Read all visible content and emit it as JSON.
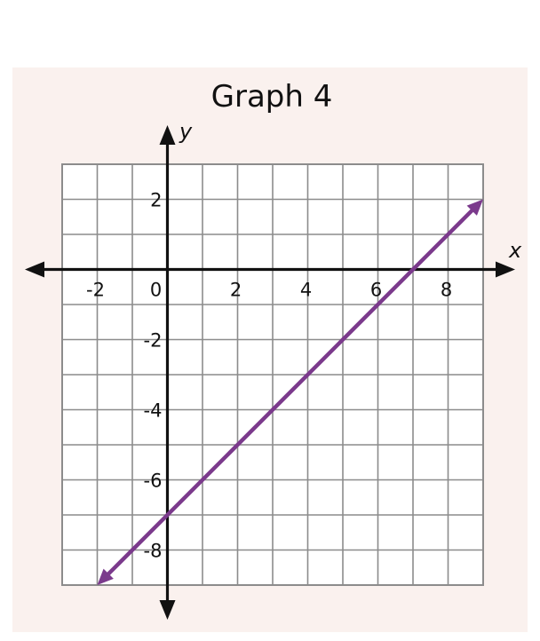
{
  "chart_data": {
    "type": "line",
    "title": "Graph 4",
    "xlabel": "x",
    "ylabel": "y",
    "xlim": [
      -3,
      9
    ],
    "ylim": [
      -9,
      3
    ],
    "grid": true,
    "x_ticks": [
      -2,
      0,
      2,
      4,
      6,
      8
    ],
    "y_ticks": [
      2,
      -2,
      -4,
      -6,
      -8
    ],
    "x_tick_labels": [
      "-2",
      "0",
      "2",
      "4",
      "6",
      "8"
    ],
    "y_tick_labels": [
      "2",
      "-2",
      "-4",
      "-6",
      "-8"
    ],
    "series": [
      {
        "line_type": "infinite-line-with-arrows",
        "color": "#7b3a8c",
        "points": [
          [
            -2,
            -9
          ],
          [
            9,
            2
          ]
        ]
      }
    ]
  },
  "colors": {
    "panel_background": "#faf1ee",
    "grid_background": "#ffffff",
    "grid_line": "#8c8c8c",
    "axis": "#111111",
    "series": "#7b3a8c"
  }
}
